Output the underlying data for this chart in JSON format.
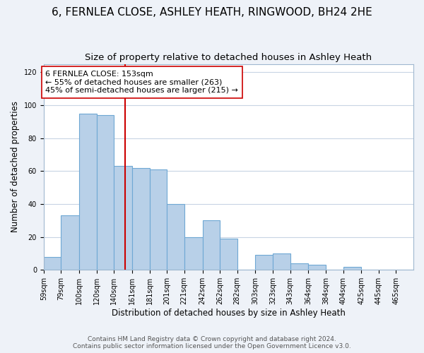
{
  "title": "6, FERNLEA CLOSE, ASHLEY HEATH, RINGWOOD, BH24 2HE",
  "subtitle": "Size of property relative to detached houses in Ashley Heath",
  "xlabel": "Distribution of detached houses by size in Ashley Heath",
  "ylabel": "Number of detached properties",
  "bar_labels": [
    "59sqm",
    "79sqm",
    "100sqm",
    "120sqm",
    "140sqm",
    "161sqm",
    "181sqm",
    "201sqm",
    "221sqm",
    "242sqm",
    "262sqm",
    "282sqm",
    "303sqm",
    "323sqm",
    "343sqm",
    "364sqm",
    "384sqm",
    "404sqm",
    "425sqm",
    "445sqm",
    "465sqm"
  ],
  "bar_values": [
    8,
    33,
    95,
    94,
    63,
    62,
    61,
    40,
    20,
    30,
    19,
    0,
    9,
    10,
    4,
    3,
    0,
    2,
    0,
    0,
    0
  ],
  "bar_edges": [
    59,
    79,
    100,
    120,
    140,
    161,
    181,
    201,
    221,
    242,
    262,
    282,
    303,
    323,
    343,
    364,
    384,
    404,
    425,
    445,
    465,
    485
  ],
  "bar_color": "#b8d0e8",
  "bar_edgecolor": "#6fa8d4",
  "property_line_x": 153,
  "property_line_color": "#cc0000",
  "annotation_text": "6 FERNLEA CLOSE: 153sqm\n← 55% of detached houses are smaller (263)\n45% of semi-detached houses are larger (215) →",
  "annotation_box_edgecolor": "#cc0000",
  "annotation_box_facecolor": "#ffffff",
  "ylim": [
    0,
    125
  ],
  "yticks": [
    0,
    20,
    40,
    60,
    80,
    100,
    120
  ],
  "footer_line1": "Contains HM Land Registry data © Crown copyright and database right 2024.",
  "footer_line2": "Contains public sector information licensed under the Open Government Licence v3.0.",
  "background_color": "#eef2f8",
  "plot_background_color": "#ffffff",
  "grid_color": "#c8d4e4",
  "title_fontsize": 11,
  "subtitle_fontsize": 9.5,
  "xlabel_fontsize": 8.5,
  "ylabel_fontsize": 8.5,
  "tick_fontsize": 7,
  "annotation_fontsize": 8,
  "footer_fontsize": 6.5
}
